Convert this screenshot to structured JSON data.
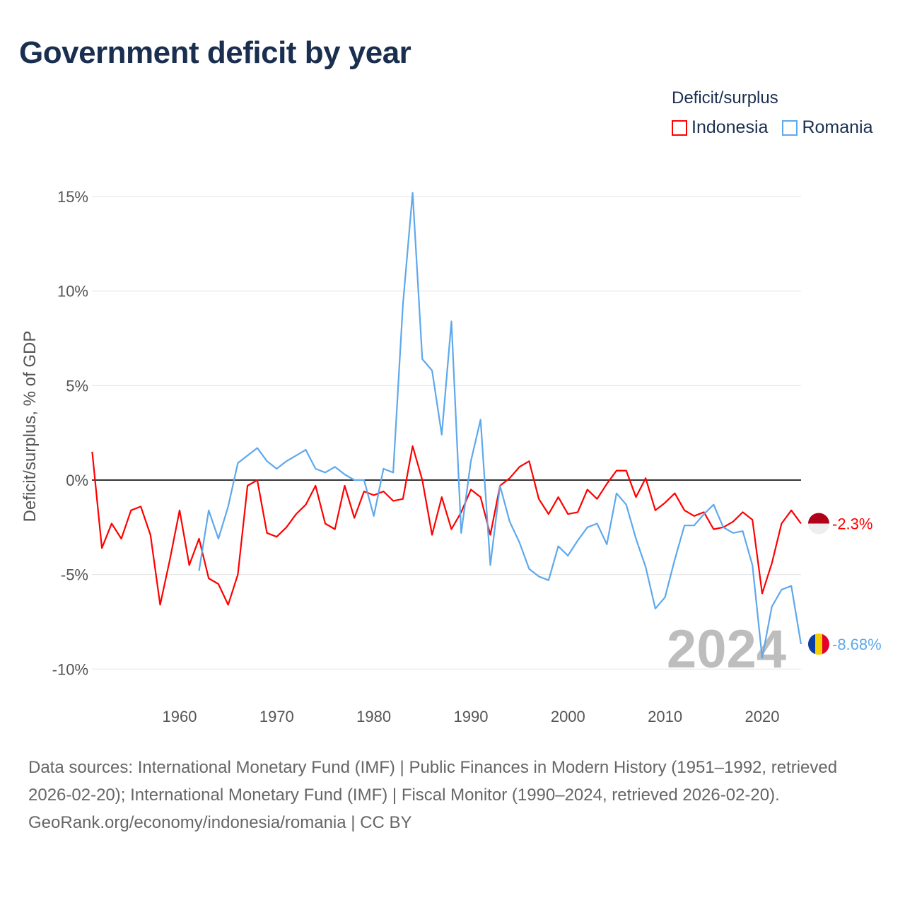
{
  "title": "Government deficit by year",
  "legend": {
    "title": "Deficit/surplus",
    "items": [
      {
        "label": "Indonesia",
        "color": "#ff0000"
      },
      {
        "label": "Romania",
        "color": "#5ea8ec"
      }
    ]
  },
  "footer": {
    "sources": "Data sources: International Monetary Fund (IMF) | Public Finances in Modern History (1951–1992, retrieved 2026-02-20); International Monetary Fund (IMF) | Fiscal Monitor (1990–2024, retrieved 2026-02-20).",
    "credit": "GeoRank.org/economy/indonesia/romania | CC BY"
  },
  "chart_data": {
    "type": "line",
    "title": "Government deficit by year",
    "xlabel": "",
    "ylabel": "Deficit/surplus, % of GDP",
    "xlim": [
      1951,
      2024
    ],
    "ylim": [
      -11,
      16
    ],
    "yticks": [
      -10,
      -5,
      0,
      5,
      10,
      15
    ],
    "ytick_labels": [
      "-10%",
      "-5%",
      "0%",
      "5%",
      "10%",
      "15%"
    ],
    "xticks": [
      1960,
      1970,
      1980,
      1990,
      2000,
      2010,
      2020
    ],
    "xtick_labels": [
      "1960",
      "1970",
      "1980",
      "1990",
      "2000",
      "2010",
      "2020"
    ],
    "grid": true,
    "legend_position": "top-right",
    "year_watermark": "2024",
    "series": [
      {
        "name": "Indonesia",
        "color": "#ff0000",
        "start_year": 1951,
        "end_label": "-2.3%",
        "values": [
          1.5,
          -3.6,
          -2.3,
          -3.1,
          -1.6,
          -1.4,
          -2.9,
          -6.6,
          -4.2,
          -1.6,
          -4.5,
          -3.1,
          -5.2,
          -5.5,
          -6.6,
          -5.0,
          -0.3,
          0.0,
          -2.8,
          -3.0,
          -2.5,
          -1.8,
          -1.3,
          -0.3,
          -2.3,
          -2.6,
          -0.3,
          -2.0,
          -0.6,
          -0.8,
          -0.6,
          -1.1,
          -1.0,
          1.8,
          0.0,
          -2.9,
          -0.9,
          -2.6,
          -1.7,
          -0.5,
          -0.9,
          -2.9,
          -0.3,
          0.1,
          0.7,
          1.0,
          -1.0,
          -1.8,
          -0.9,
          -1.8,
          -1.7,
          -0.5,
          -1.0,
          -0.2,
          0.5,
          0.5,
          -0.9,
          0.1,
          -1.6,
          -1.2,
          -0.7,
          -1.6,
          -1.9,
          -1.7,
          -2.6,
          -2.5,
          -2.2,
          -1.7,
          -2.1,
          -6.0,
          -4.4,
          -2.3,
          -1.6,
          -2.3
        ]
      },
      {
        "name": "Romania",
        "color": "#5ea8ec",
        "start_year": 1962,
        "end_label": "-8.68%",
        "values": [
          -4.8,
          -1.6,
          -3.1,
          -1.4,
          0.9,
          1.3,
          1.7,
          1.0,
          0.6,
          1.0,
          1.3,
          1.6,
          0.6,
          0.4,
          0.7,
          0.3,
          0.0,
          0.0,
          -1.9,
          0.6,
          0.4,
          9.3,
          15.2,
          6.4,
          5.8,
          2.4,
          8.4,
          -2.8,
          1.0,
          3.2,
          -4.5,
          -0.3,
          -2.2,
          -3.3,
          -4.7,
          -5.1,
          -5.3,
          -3.5,
          -4.0,
          -3.2,
          -2.5,
          -2.3,
          -3.4,
          -0.7,
          -1.3,
          -3.1,
          -4.6,
          -6.8,
          -6.2,
          -4.2,
          -2.4,
          -2.4,
          -1.8,
          -1.3,
          -2.5,
          -2.8,
          -2.7,
          -4.5,
          -9.4,
          -6.7,
          -5.8,
          -5.6,
          -8.68
        ]
      }
    ]
  }
}
